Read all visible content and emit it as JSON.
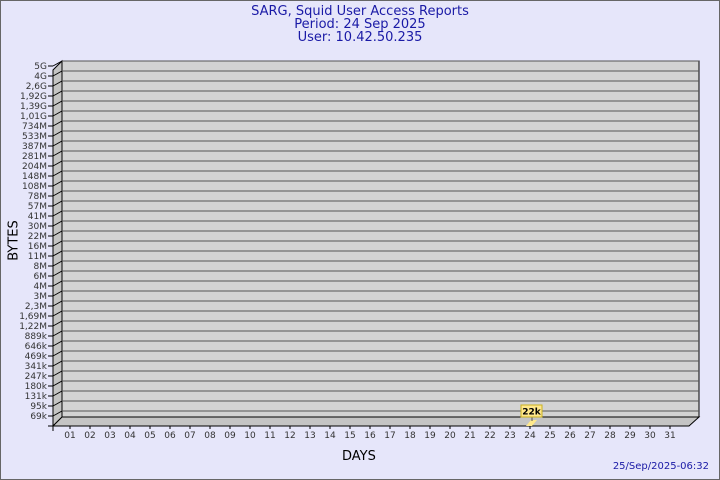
{
  "header": {
    "title": "SARG, Squid User Access Reports",
    "period": "Period: 24 Sep 2025",
    "user": "User: 10.42.50.235"
  },
  "footer": {
    "timestamp": "25/Sep/2025-06:32"
  },
  "colors": {
    "background": "#e6e6fa",
    "plot": "#d3d3d3",
    "title": "#1a1aa6",
    "bar": "#ffe88c"
  },
  "chart_data": {
    "type": "bar",
    "xlabel": "DAYS",
    "ylabel": "BYTES",
    "y_scale": "log",
    "grid": true,
    "y_ticks": [
      "5G",
      "4G",
      "2,6G",
      "1,92G",
      "1,39G",
      "1,01G",
      "734M",
      "533M",
      "387M",
      "281M",
      "204M",
      "148M",
      "108M",
      "78M",
      "57M",
      "41M",
      "30M",
      "22M",
      "16M",
      "11M",
      "8M",
      "6M",
      "4M",
      "3M",
      "2,3M",
      "1,69M",
      "1,22M",
      "889k",
      "646k",
      "469k",
      "341k",
      "247k",
      "180k",
      "131k",
      "95k",
      "69k"
    ],
    "categories": [
      "01",
      "02",
      "03",
      "04",
      "05",
      "06",
      "07",
      "08",
      "09",
      "10",
      "11",
      "12",
      "13",
      "14",
      "15",
      "16",
      "17",
      "18",
      "19",
      "20",
      "21",
      "22",
      "23",
      "24",
      "25",
      "26",
      "27",
      "28",
      "29",
      "30",
      "31"
    ],
    "values": [
      {
        "day": "24",
        "bytes": 22000,
        "label": "22k"
      }
    ]
  }
}
